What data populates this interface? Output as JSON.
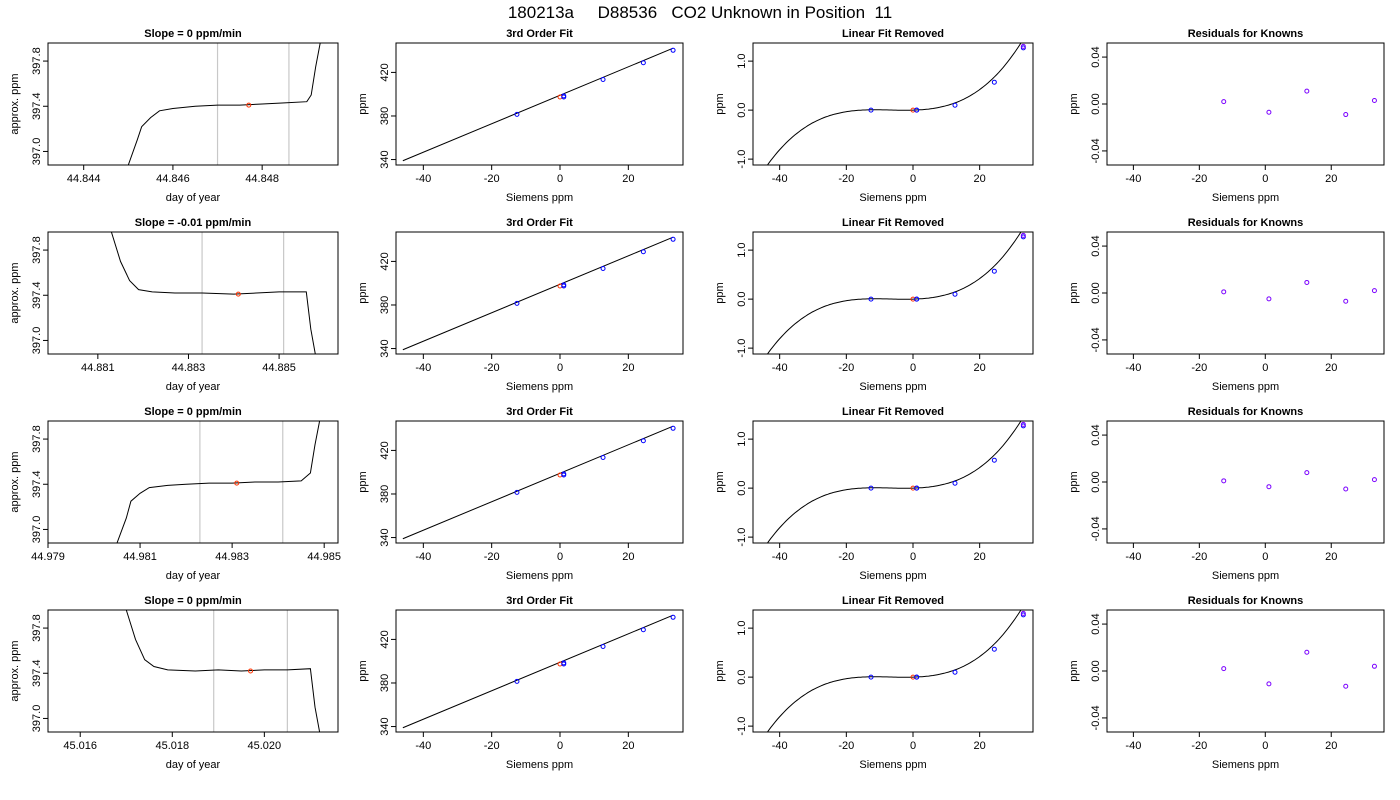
{
  "title": "180213a     D88536   CO2 Unknown in Position  11",
  "chart_data": [
    {
      "type": "line",
      "panel": "trace",
      "title": "Slope =  0  ppm/min",
      "xlabel": "day of year",
      "ylabel": "approx. ppm",
      "xlim": [
        44.8432,
        44.8497
      ],
      "ylim": [
        396.88,
        397.96
      ],
      "xticks": [
        44.844,
        44.846,
        44.848
      ],
      "xtick_labels": [
        "44.844",
        "44.846",
        "44.848"
      ],
      "yticks": [
        397.0,
        397.4,
        397.8
      ],
      "ytick_labels": [
        "397.0",
        "397.4",
        "397.8"
      ],
      "vlines": [
        44.847,
        44.8486
      ],
      "x": [
        44.845,
        44.8452,
        44.8453,
        44.8455,
        44.8457,
        44.846,
        44.8465,
        44.847,
        44.8475,
        44.848,
        44.8485,
        44.849,
        44.8491,
        44.8492,
        44.8493
      ],
      "y": [
        396.88,
        397.1,
        397.22,
        397.3,
        397.36,
        397.38,
        397.4,
        397.41,
        397.41,
        397.42,
        397.43,
        397.44,
        397.5,
        397.75,
        397.96
      ],
      "marker": {
        "x": 44.8477,
        "y": 397.41
      }
    },
    {
      "type": "line",
      "panel": "fit",
      "title": "3rd Order Fit",
      "xlabel": "Siemens ppm",
      "ylabel": "ppm",
      "xlim": [
        -48,
        36
      ],
      "ylim": [
        335,
        447
      ],
      "xticks": [
        -40,
        -20,
        0,
        20
      ],
      "xtick_labels": [
        "-40",
        "-20",
        "0",
        "20"
      ],
      "yticks": [
        340,
        380,
        420
      ],
      "ytick_labels": [
        "340",
        "380",
        "420"
      ],
      "line": {
        "x": [
          -46,
          33
        ],
        "y": [
          338.9,
          442.1
        ]
      },
      "points": {
        "x": [
          -12.6,
          1.1,
          12.6,
          24.4,
          33.1
        ],
        "y": [
          381.5,
          398.5,
          413.5,
          428.9,
          440.3
        ]
      },
      "unknown": {
        "x": [
          0
        ],
        "y": [
          397.4
        ]
      }
    },
    {
      "type": "line",
      "panel": "linear_removed",
      "title": "Linear Fit Removed",
      "xlabel": "Siemens ppm",
      "ylabel": "ppm",
      "xlim": [
        -48,
        36
      ],
      "ylim": [
        -1.12,
        1.37
      ],
      "xticks": [
        -40,
        -20,
        0,
        20
      ],
      "xtick_labels": [
        "-40",
        "-20",
        "0",
        "20"
      ],
      "yticks": [
        -1.0,
        0.0,
        1.0
      ],
      "ytick_labels": [
        "-1.0",
        "0.0",
        "1.0"
      ],
      "cubic": {
        "a": 0.0013,
        "b": 0.00098,
        "c": -0.09
      },
      "curve_x_range": [
        -46,
        33
      ],
      "points": {
        "x": [
          -12.6,
          1.1,
          12.6,
          24.4,
          33.1
        ],
        "y": [
          0.0,
          0.0,
          0.1,
          0.57,
          1.27
        ]
      },
      "points_red": {
        "x": [
          33.1
        ],
        "y": [
          1.3
        ]
      },
      "unknown": {
        "x": [
          0
        ],
        "y": [
          0.0
        ]
      }
    },
    {
      "type": "scatter",
      "panel": "residuals",
      "title": "Residuals for Knowns",
      "xlabel": "Siemens ppm",
      "ylabel": "ppm",
      "xlim": [
        -48,
        36
      ],
      "ylim": [
        -0.052,
        0.052
      ],
      "xticks": [
        -40,
        -20,
        0,
        20
      ],
      "xtick_labels": [
        "-40",
        "-20",
        "0",
        "20"
      ],
      "yticks": [
        -0.04,
        0.0,
        0.04
      ],
      "ytick_labels": [
        "-0.04",
        "0.00",
        "0.04"
      ],
      "points": {
        "x": [
          -12.6,
          1.1,
          12.6,
          24.4,
          33.1
        ],
        "y": [
          0.002,
          -0.007,
          0.011,
          -0.009,
          0.003
        ]
      }
    },
    {
      "type": "line",
      "panel": "trace",
      "title": "Slope =  -0.01  ppm/min",
      "xlabel": "day of year",
      "ylabel": "approx. ppm",
      "xlim": [
        44.8799,
        44.8863
      ],
      "ylim": [
        396.88,
        397.96
      ],
      "xticks": [
        44.881,
        44.883,
        44.885
      ],
      "xtick_labels": [
        "44.881",
        "44.883",
        "44.885"
      ],
      "yticks": [
        397.0,
        397.4,
        397.8
      ],
      "ytick_labels": [
        "397.0",
        "397.4",
        "397.8"
      ],
      "vlines": [
        44.8833,
        44.8851
      ],
      "x": [
        44.8813,
        44.8815,
        44.8817,
        44.8819,
        44.8822,
        44.8827,
        44.8833,
        44.884,
        44.8845,
        44.885,
        44.8856,
        44.8857,
        44.8858
      ],
      "y": [
        397.96,
        397.7,
        397.53,
        397.45,
        397.43,
        397.42,
        397.42,
        397.41,
        397.42,
        397.43,
        397.43,
        397.1,
        396.88
      ],
      "marker": {
        "x": 44.8841,
        "y": 397.41
      }
    },
    {
      "type": "line",
      "panel": "fit",
      "title": "3rd Order Fit",
      "xlabel": "Siemens ppm",
      "ylabel": "ppm",
      "xlim": [
        -48,
        36
      ],
      "ylim": [
        335,
        447
      ],
      "xticks": [
        -40,
        -20,
        0,
        20
      ],
      "xtick_labels": [
        "-40",
        "-20",
        "0",
        "20"
      ],
      "yticks": [
        340,
        380,
        420
      ],
      "ytick_labels": [
        "340",
        "380",
        "420"
      ],
      "line": {
        "x": [
          -46,
          33
        ],
        "y": [
          338.9,
          442.1
        ]
      },
      "points": {
        "x": [
          -12.6,
          1.1,
          12.6,
          24.4,
          33.1
        ],
        "y": [
          381.5,
          398.5,
          413.5,
          428.9,
          440.3
        ]
      },
      "unknown": {
        "x": [
          0
        ],
        "y": [
          397.4
        ]
      }
    },
    {
      "type": "line",
      "panel": "linear_removed",
      "title": "Linear Fit Removed",
      "xlabel": "Siemens ppm",
      "ylabel": "ppm",
      "xlim": [
        -48,
        36
      ],
      "ylim": [
        -1.12,
        1.37
      ],
      "xticks": [
        -40,
        -20,
        0,
        20
      ],
      "xtick_labels": [
        "-40",
        "-20",
        "0",
        "20"
      ],
      "yticks": [
        -1.0,
        0.0,
        1.0
      ],
      "ytick_labels": [
        "-1.0",
        "0.0",
        "1.0"
      ],
      "cubic": {
        "a": 0.0013,
        "b": 0.00098,
        "c": -0.09
      },
      "curve_x_range": [
        -46,
        33
      ],
      "points": {
        "x": [
          -12.6,
          1.1,
          12.6,
          24.4,
          33.1
        ],
        "y": [
          0.0,
          0.0,
          0.1,
          0.57,
          1.27
        ]
      },
      "points_red": {
        "x": [
          33.1
        ],
        "y": [
          1.3
        ]
      },
      "unknown": {
        "x": [
          0
        ],
        "y": [
          0.0
        ]
      }
    },
    {
      "type": "scatter",
      "panel": "residuals",
      "title": "Residuals for Knowns",
      "xlabel": "Siemens ppm",
      "ylabel": "ppm",
      "xlim": [
        -48,
        36
      ],
      "ylim": [
        -0.052,
        0.052
      ],
      "xticks": [
        -40,
        -20,
        0,
        20
      ],
      "xtick_labels": [
        "-40",
        "-20",
        "0",
        "20"
      ],
      "yticks": [
        -0.04,
        0.0,
        0.04
      ],
      "ytick_labels": [
        "-0.04",
        "0.00",
        "0.04"
      ],
      "points": {
        "x": [
          -12.6,
          1.1,
          12.6,
          24.4,
          33.1
        ],
        "y": [
          0.001,
          -0.005,
          0.009,
          -0.007,
          0.002
        ]
      }
    },
    {
      "type": "line",
      "panel": "trace",
      "title": "Slope =  0  ppm/min",
      "xlabel": "day of year",
      "ylabel": "approx. ppm",
      "xlim": [
        44.979,
        44.9853
      ],
      "ylim": [
        396.88,
        397.96
      ],
      "xticks": [
        44.979,
        44.981,
        44.983,
        44.985
      ],
      "xtick_labels": [
        "44.979",
        "44.981",
        "44.983",
        "44.985"
      ],
      "yticks": [
        397.0,
        397.4,
        397.8
      ],
      "ytick_labels": [
        "397.0",
        "397.4",
        "397.8"
      ],
      "vlines": [
        44.9823,
        44.9841
      ],
      "x": [
        44.9805,
        44.9807,
        44.9808,
        44.981,
        44.9812,
        44.9816,
        44.982,
        44.9825,
        44.983,
        44.9835,
        44.984,
        44.9845,
        44.9847,
        44.9848,
        44.9849
      ],
      "y": [
        396.88,
        397.1,
        397.25,
        397.32,
        397.37,
        397.39,
        397.4,
        397.41,
        397.41,
        397.42,
        397.42,
        397.43,
        397.5,
        397.75,
        397.96
      ],
      "marker": {
        "x": 44.9831,
        "y": 397.41
      }
    },
    {
      "type": "line",
      "panel": "fit",
      "title": "3rd Order Fit",
      "xlabel": "Siemens ppm",
      "ylabel": "ppm",
      "xlim": [
        -48,
        36
      ],
      "ylim": [
        335,
        447
      ],
      "xticks": [
        -40,
        -20,
        0,
        20
      ],
      "xtick_labels": [
        "-40",
        "-20",
        "0",
        "20"
      ],
      "yticks": [
        340,
        380,
        420
      ],
      "ytick_labels": [
        "340",
        "380",
        "420"
      ],
      "line": {
        "x": [
          -46,
          33
        ],
        "y": [
          338.9,
          442.1
        ]
      },
      "points": {
        "x": [
          -12.6,
          1.1,
          12.6,
          24.4,
          33.1
        ],
        "y": [
          381.5,
          398.5,
          413.5,
          428.9,
          440.3
        ]
      },
      "unknown": {
        "x": [
          0
        ],
        "y": [
          397.4
        ]
      }
    },
    {
      "type": "line",
      "panel": "linear_removed",
      "title": "Linear Fit Removed",
      "xlabel": "Siemens ppm",
      "ylabel": "ppm",
      "xlim": [
        -48,
        36
      ],
      "ylim": [
        -1.12,
        1.37
      ],
      "xticks": [
        -40,
        -20,
        0,
        20
      ],
      "xtick_labels": [
        "-40",
        "-20",
        "0",
        "20"
      ],
      "yticks": [
        -1.0,
        0.0,
        1.0
      ],
      "ytick_labels": [
        "-1.0",
        "0.0",
        "1.0"
      ],
      "cubic": {
        "a": 0.0013,
        "b": 0.00098,
        "c": -0.09
      },
      "curve_x_range": [
        -46,
        33
      ],
      "points": {
        "x": [
          -12.6,
          1.1,
          12.6,
          24.4,
          33.1
        ],
        "y": [
          0.0,
          0.0,
          0.1,
          0.57,
          1.27
        ]
      },
      "points_red": {
        "x": [
          33.1
        ],
        "y": [
          1.3
        ]
      },
      "unknown": {
        "x": [
          0
        ],
        "y": [
          0.0
        ]
      }
    },
    {
      "type": "scatter",
      "panel": "residuals",
      "title": "Residuals for Knowns",
      "xlabel": "Siemens ppm",
      "ylabel": "ppm",
      "xlim": [
        -48,
        36
      ],
      "ylim": [
        -0.052,
        0.052
      ],
      "xticks": [
        -40,
        -20,
        0,
        20
      ],
      "xtick_labels": [
        "-40",
        "-20",
        "0",
        "20"
      ],
      "yticks": [
        -0.04,
        0.0,
        0.04
      ],
      "ytick_labels": [
        "-0.04",
        "0.00",
        "0.04"
      ],
      "points": {
        "x": [
          -12.6,
          1.1,
          12.6,
          24.4,
          33.1
        ],
        "y": [
          0.001,
          -0.004,
          0.008,
          -0.006,
          0.002
        ]
      }
    },
    {
      "type": "line",
      "panel": "trace",
      "title": "Slope =  0  ppm/min",
      "xlabel": "day of year",
      "ylabel": "approx. ppm",
      "xlim": [
        45.0153,
        45.0216
      ],
      "ylim": [
        396.88,
        397.96
      ],
      "xticks": [
        45.016,
        45.018,
        45.02
      ],
      "xtick_labels": [
        "45.016",
        "45.018",
        "45.020"
      ],
      "yticks": [
        397.0,
        397.4,
        397.8
      ],
      "ytick_labels": [
        "397.0",
        "397.4",
        "397.8"
      ],
      "vlines": [
        45.0189,
        45.0205
      ],
      "x": [
        45.017,
        45.0172,
        45.0174,
        45.0176,
        45.0179,
        45.0185,
        45.019,
        45.0195,
        45.02,
        45.0205,
        45.021,
        45.0211,
        45.0212
      ],
      "y": [
        397.96,
        397.7,
        397.52,
        397.46,
        397.43,
        397.42,
        397.43,
        397.42,
        397.43,
        397.43,
        397.44,
        397.1,
        396.88
      ],
      "marker": {
        "x": 45.0197,
        "y": 397.42
      }
    },
    {
      "type": "line",
      "panel": "fit",
      "title": "3rd Order Fit",
      "xlabel": "Siemens ppm",
      "ylabel": "ppm",
      "xlim": [
        -48,
        36
      ],
      "ylim": [
        335,
        447
      ],
      "xticks": [
        -40,
        -20,
        0,
        20
      ],
      "xtick_labels": [
        "-40",
        "-20",
        "0",
        "20"
      ],
      "yticks": [
        340,
        380,
        420
      ],
      "ytick_labels": [
        "340",
        "380",
        "420"
      ],
      "line": {
        "x": [
          -46,
          33
        ],
        "y": [
          338.9,
          442.1
        ]
      },
      "points": {
        "x": [
          -12.6,
          1.1,
          12.6,
          24.4,
          33.1
        ],
        "y": [
          381.5,
          398.5,
          413.5,
          428.9,
          440.3
        ]
      },
      "unknown": {
        "x": [
          0
        ],
        "y": [
          397.4
        ]
      }
    },
    {
      "type": "line",
      "panel": "linear_removed",
      "title": "Linear Fit Removed",
      "xlabel": "Siemens ppm",
      "ylabel": "ppm",
      "xlim": [
        -48,
        36
      ],
      "ylim": [
        -1.12,
        1.37
      ],
      "xticks": [
        -40,
        -20,
        0,
        20
      ],
      "xtick_labels": [
        "-40",
        "-20",
        "0",
        "20"
      ],
      "yticks": [
        -1.0,
        0.0,
        1.0
      ],
      "ytick_labels": [
        "-1.0",
        "0.0",
        "1.0"
      ],
      "cubic": {
        "a": 0.0013,
        "b": 0.00098,
        "c": -0.09
      },
      "curve_x_range": [
        -46,
        33
      ],
      "points": {
        "x": [
          -12.6,
          1.1,
          12.6,
          24.4,
          33.1
        ],
        "y": [
          0.0,
          0.0,
          0.1,
          0.57,
          1.27
        ]
      },
      "points_red": {
        "x": [
          33.1
        ],
        "y": [
          1.3
        ]
      },
      "unknown": {
        "x": [
          0
        ],
        "y": [
          0.0
        ]
      }
    },
    {
      "type": "scatter",
      "panel": "residuals",
      "title": "Residuals for Knowns",
      "xlabel": "Siemens ppm",
      "ylabel": "ppm",
      "xlim": [
        -48,
        36
      ],
      "ylim": [
        -0.052,
        0.052
      ],
      "xticks": [
        -40,
        -20,
        0,
        20
      ],
      "xtick_labels": [
        "-40",
        "-20",
        "0",
        "20"
      ],
      "yticks": [
        -0.04,
        0.0,
        0.04
      ],
      "ytick_labels": [
        "-0.04",
        "0.00",
        "0.04"
      ],
      "points": {
        "x": [
          -12.6,
          1.1,
          12.6,
          24.4,
          33.1
        ],
        "y": [
          0.002,
          -0.011,
          0.016,
          -0.013,
          0.004
        ]
      }
    }
  ],
  "colors": {
    "axis": "#000000",
    "vline": "#c8c8c8",
    "known_point": "#0000ff",
    "unknown_point": "#ff3300",
    "residual_point": "#7a00ff",
    "curve": "#000000"
  }
}
